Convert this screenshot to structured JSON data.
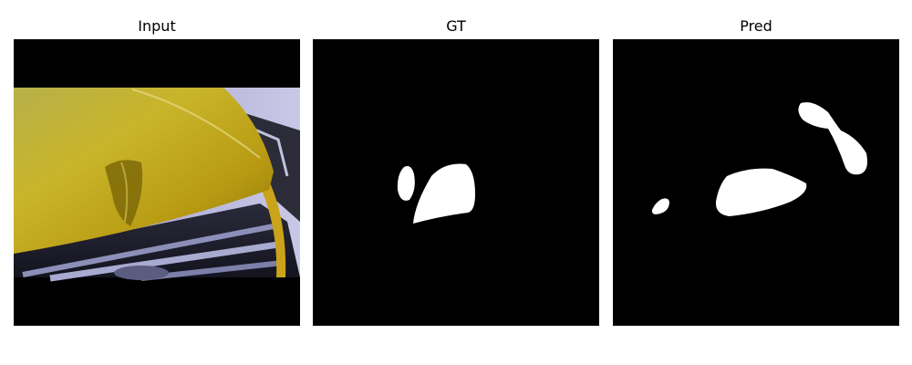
{
  "panels": [
    {
      "title": "Input"
    },
    {
      "title": "GT"
    },
    {
      "title": "Pred"
    }
  ],
  "colors": {
    "background": "#ffffff",
    "mask_background": "#000000",
    "mask_foreground": "#ffffff",
    "car_paint": "#c8b420"
  }
}
